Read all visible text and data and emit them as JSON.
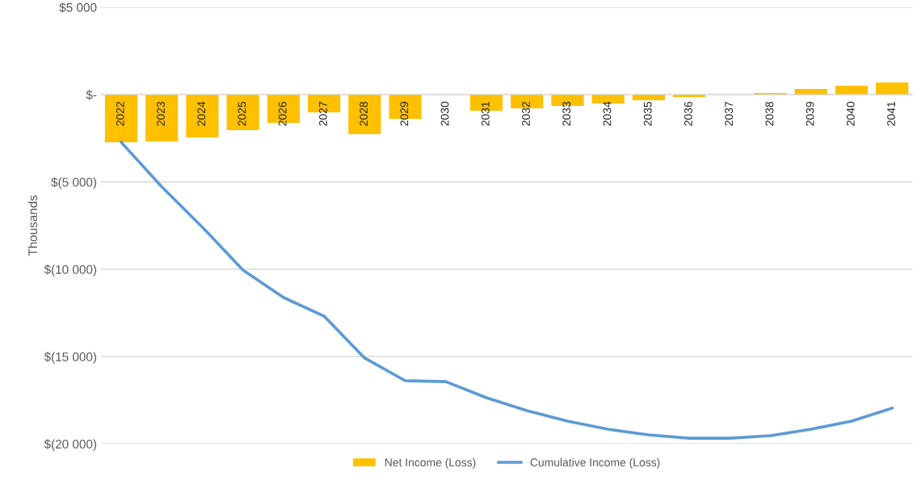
{
  "chart_data": {
    "type": "bar",
    "ylabel": "Thousands",
    "categories": [
      "2022",
      "2023",
      "2024",
      "2025",
      "2026",
      "2027",
      "2028",
      "2029",
      "2030",
      "2031",
      "2032",
      "2033",
      "2034",
      "2035",
      "2036",
      "2037",
      "2038",
      "2039",
      "2040",
      "2041"
    ],
    "series": [
      {
        "name": "Net Income (Loss)",
        "color": "#ffc000",
        "values": [
          -2730,
          -2690,
          -2450,
          -2040,
          -1620,
          -1020,
          -2270,
          -1390,
          0,
          -930,
          -790,
          -650,
          -510,
          -320,
          -140,
          0,
          90,
          320,
          510,
          690
        ]
      },
      {
        "name": "Cumulative Income (Loss)",
        "type": "line",
        "color": "#5b9bd5",
        "values": [
          -2730,
          -5280,
          -7590,
          -10050,
          -11620,
          -12690,
          -15090,
          -16390,
          -16440,
          -17360,
          -18100,
          -18700,
          -19170,
          -19490,
          -19680,
          -19680,
          -19540,
          -19170,
          -18700,
          -17960
        ]
      }
    ],
    "ylim": [
      -20000,
      5000
    ],
    "yticks": [
      {
        "value": 5000,
        "label": "$5 000"
      },
      {
        "value": 0,
        "label": "$-"
      },
      {
        "value": -5000,
        "label": "$(5 000)"
      },
      {
        "value": -10000,
        "label": "$(10 000)"
      },
      {
        "value": -15000,
        "label": "$(15 000)"
      },
      {
        "value": -20000,
        "label": "$(20 000)"
      }
    ],
    "grid": "y",
    "legend": "bottom",
    "marker": "none",
    "line_style": "solid"
  }
}
